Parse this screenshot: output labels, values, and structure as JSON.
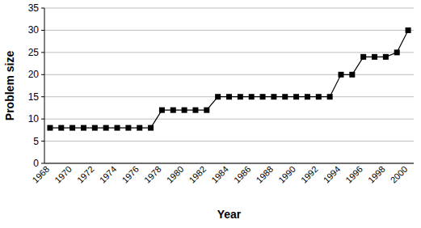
{
  "chart_data": {
    "type": "line",
    "x_label": "Year",
    "y_label": "Problem size",
    "categories": [
      "1968",
      null,
      "1970",
      null,
      "1972",
      null,
      "1974",
      null,
      "1976",
      null,
      "1978",
      null,
      "1980",
      null,
      "1982",
      null,
      "1984",
      null,
      "1986",
      null,
      "1988",
      null,
      "1990",
      null,
      "1992",
      null,
      "1994",
      null,
      "1996",
      null,
      "1998",
      null,
      "2000"
    ],
    "values": [
      8,
      8,
      8,
      8,
      8,
      8,
      8,
      8,
      8,
      8,
      12,
      12,
      12,
      12,
      12,
      15,
      15,
      15,
      15,
      15,
      15,
      15,
      15,
      15,
      15,
      15,
      20,
      20,
      24,
      24,
      24,
      25,
      30
    ],
    "color": "#000000",
    "marker": "square",
    "line_style": "solid",
    "ylim": [
      0,
      35
    ],
    "yticks": [
      0,
      5,
      10,
      15,
      20,
      25,
      30,
      35
    ],
    "grid": true
  }
}
